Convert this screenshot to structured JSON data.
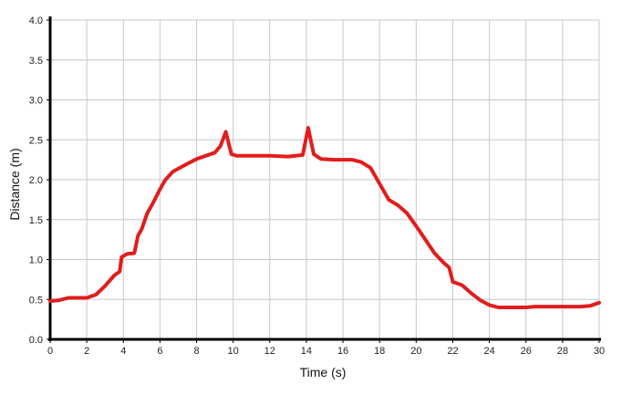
{
  "chart_data": {
    "type": "line",
    "title": "",
    "xlabel": "Time (s)",
    "ylabel": "Distance (m)",
    "xlim": [
      0,
      30
    ],
    "ylim": [
      0,
      4
    ],
    "x_ticks": [
      0,
      2,
      4,
      6,
      8,
      10,
      12,
      14,
      16,
      18,
      20,
      22,
      24,
      26,
      28,
      30
    ],
    "x_tick_labels": [
      "0",
      "2",
      "4",
      "6",
      "8",
      "10",
      "12",
      "14",
      "16",
      "18",
      "20",
      "22",
      "24",
      "26",
      "28",
      "30"
    ],
    "y_ticks": [
      0,
      0.5,
      1,
      1.5,
      2,
      2.5,
      3,
      3.5,
      4
    ],
    "y_tick_labels": [
      "0.0",
      "0.5",
      "1.0",
      "1.5",
      "2.0",
      "2.5",
      "3.0",
      "3.5",
      "4.0"
    ],
    "grid": true,
    "colors": {
      "line": "#e11d1d",
      "grid": "#c8c8c8",
      "axis": "#000000"
    },
    "series": [
      {
        "x": [
          0,
          0.5,
          1,
          1.5,
          2,
          2.5,
          3,
          3.5,
          3.8,
          3.9,
          4.2,
          4.6,
          4.8,
          5,
          5.3,
          5.6,
          6,
          6.3,
          6.7,
          7,
          7.5,
          8,
          8.5,
          9,
          9.3,
          9.6,
          9.9,
          10.2,
          11,
          12,
          13,
          13.8,
          14.1,
          14.4,
          14.8,
          15.5,
          16.5,
          17,
          17.5,
          18,
          18.5,
          19,
          19.5,
          20,
          20.5,
          21,
          21.5,
          21.8,
          22,
          22.5,
          23,
          23.5,
          24,
          24.5,
          25,
          25.5,
          26,
          26.5,
          27,
          28,
          29,
          29.5,
          30
        ],
        "y": [
          0.48,
          0.49,
          0.52,
          0.52,
          0.52,
          0.56,
          0.67,
          0.8,
          0.85,
          1.03,
          1.07,
          1.08,
          1.3,
          1.38,
          1.58,
          1.7,
          1.88,
          2.0,
          2.1,
          2.14,
          2.2,
          2.26,
          2.3,
          2.34,
          2.42,
          2.6,
          2.32,
          2.3,
          2.3,
          2.3,
          2.29,
          2.31,
          2.65,
          2.32,
          2.26,
          2.25,
          2.25,
          2.22,
          2.15,
          1.95,
          1.75,
          1.68,
          1.58,
          1.42,
          1.25,
          1.08,
          0.96,
          0.9,
          0.72,
          0.68,
          0.58,
          0.49,
          0.43,
          0.4,
          0.4,
          0.4,
          0.4,
          0.41,
          0.41,
          0.41,
          0.41,
          0.42,
          0.46
        ]
      }
    ]
  }
}
